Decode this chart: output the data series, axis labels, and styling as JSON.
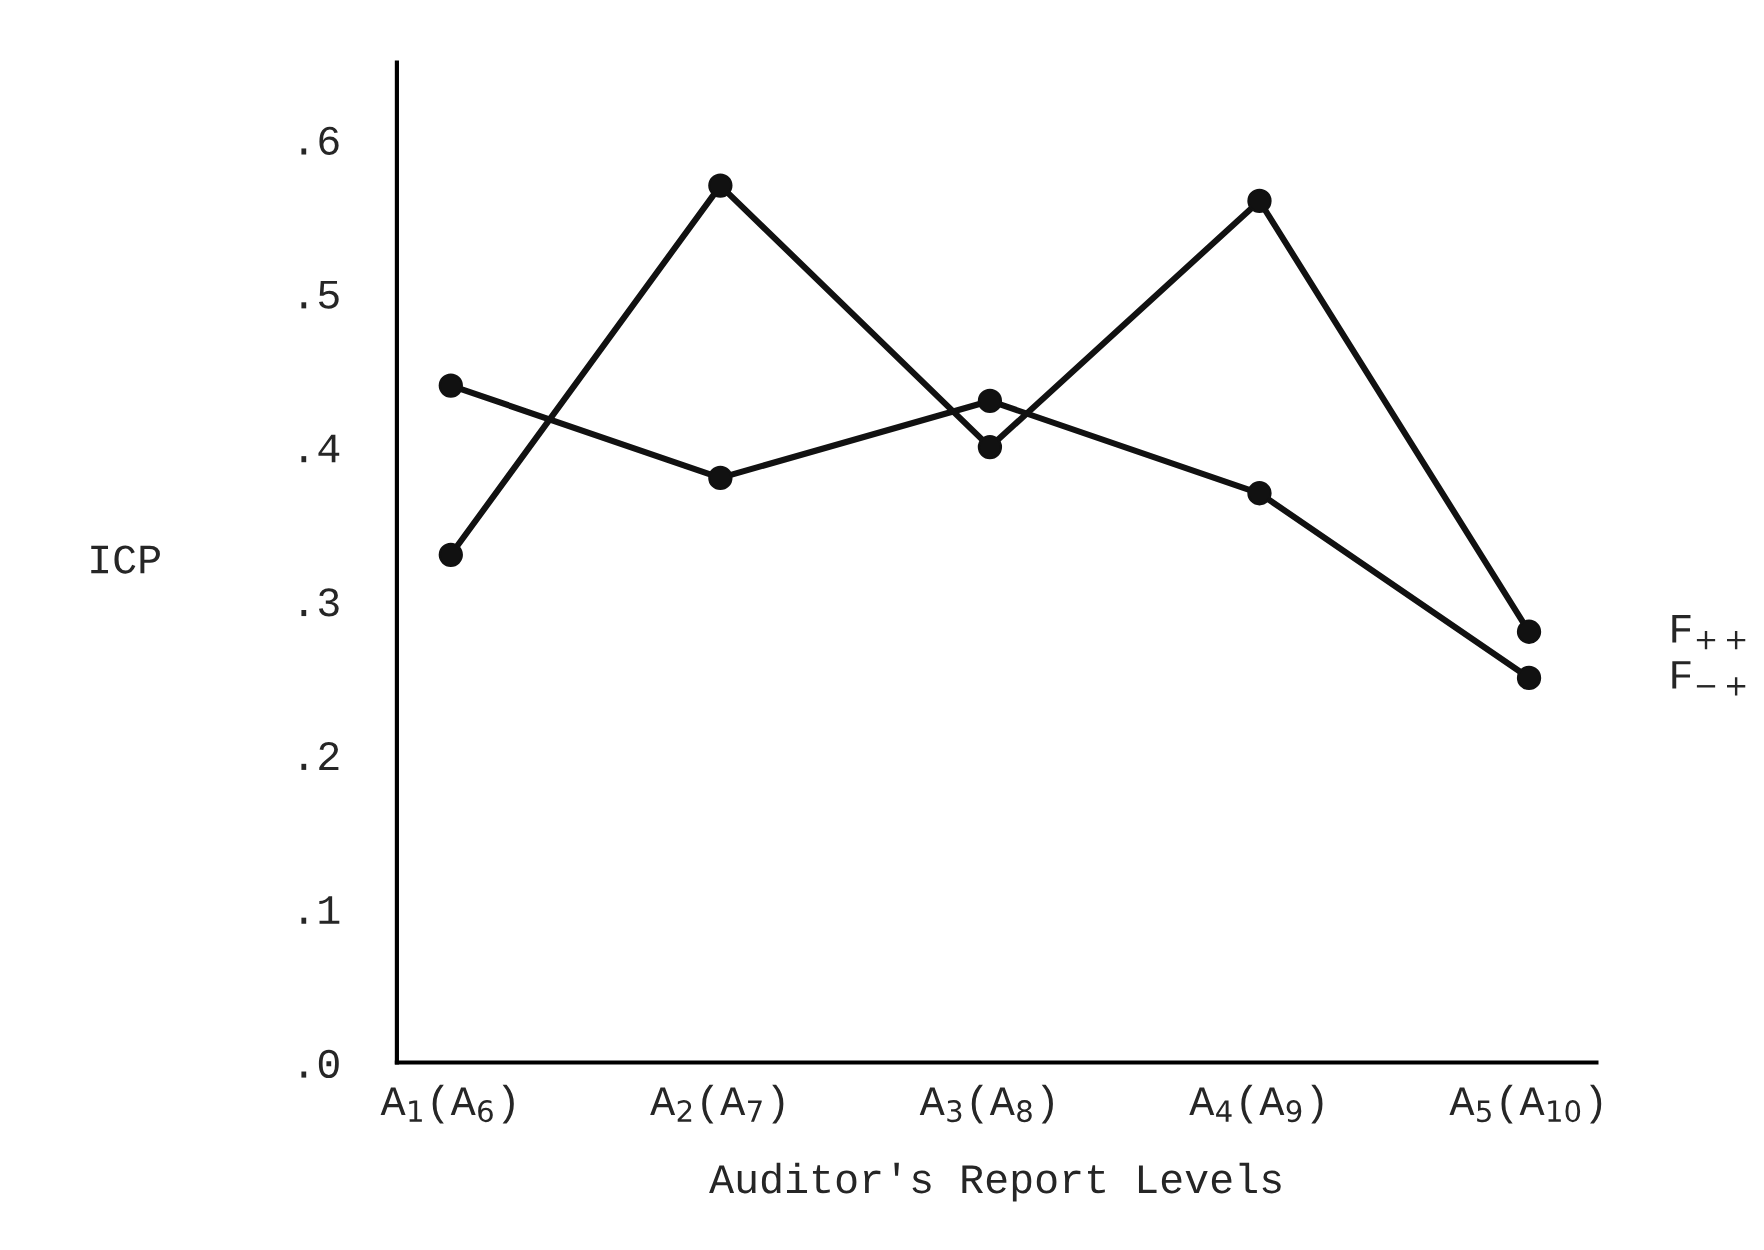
{
  "chart_data": {
    "type": "line",
    "xlabel": "Auditor's Report Levels",
    "ylabel": "ICP",
    "categories": [
      "A$_{1}$(A$_{6}$)",
      "A$_{2}$(A$_{7}$)",
      "A$_{3}$(A$_{8}$)",
      "A$_{4}$(A$_{9}$)",
      "A$_{5}$(A$_{10}$)"
    ],
    "series": [
      {
        "name": "F$_{++}$",
        "color": "#111111",
        "values": [
          0.33,
          0.57,
          0.4,
          0.56,
          0.28
        ]
      },
      {
        "name": "F$_{−+}$",
        "color": "#111111",
        "values": [
          0.44,
          0.38,
          0.43,
          0.37,
          0.25
        ]
      }
    ],
    "ylim": [
      0,
      0.65
    ],
    "yticks": [
      {
        "value": 0,
        "label": ".0"
      },
      {
        "value": 0.1,
        "label": ".1"
      },
      {
        "value": 0.2,
        "label": ".2"
      },
      {
        "value": 0.3,
        "label": ".3"
      },
      {
        "value": 0.4,
        "label": ".4"
      },
      {
        "value": 0.5,
        "label": ".5"
      },
      {
        "value": 0.6,
        "label": ".6"
      }
    ],
    "marker": "circle",
    "line_style": "solid",
    "grid": false,
    "legend": false
  }
}
